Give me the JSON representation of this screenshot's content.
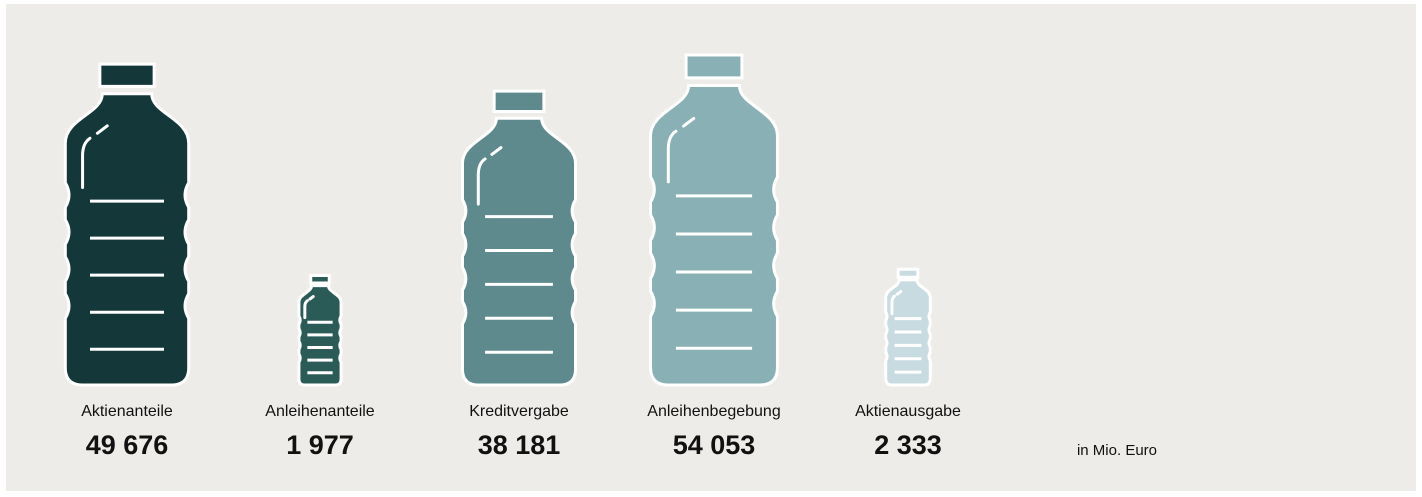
{
  "chart_data": {
    "type": "pictogram",
    "categories": [
      "Aktienanteile",
      "Anleihenanteile",
      "Kreditvergabe",
      "Anleihenbegebung",
      "Aktienausgabe"
    ],
    "values": [
      49676,
      1977,
      38181,
      54053,
      2333
    ],
    "value_labels": [
      "49 676",
      "1 977",
      "38 181",
      "54 053",
      "2 333"
    ],
    "colors": [
      "#14373a",
      "#2b5b57",
      "#5e8a8e",
      "#89b0b5",
      "#c8dbe0"
    ],
    "unit_note": "in Mio. Euro"
  }
}
